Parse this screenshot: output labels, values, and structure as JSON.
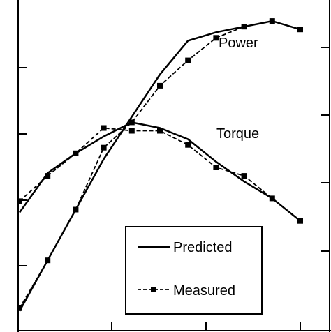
{
  "chart_data": {
    "type": "line",
    "title": "",
    "xlabel": "",
    "ylabel": "",
    "grid": false,
    "legend_placement": "bottom-right",
    "legend": [
      {
        "name": "Predicted",
        "style": "solid"
      },
      {
        "name": "Measured",
        "style": "dashed-square-markers"
      }
    ],
    "annotations": [
      "Power",
      "Torque"
    ],
    "x": [
      0,
      1,
      2,
      3,
      4,
      5,
      6,
      7,
      8,
      9,
      10
    ],
    "power": {
      "predicted": [
        0.4,
        2.2,
        4.0,
        5.8,
        7.3,
        8.8,
        10.0,
        10.3,
        10.5,
        10.7,
        10.4
      ],
      "measured": [
        0.5,
        2.2,
        4.0,
        6.2,
        7.1,
        8.4,
        9.3,
        10.1,
        10.5,
        10.7,
        10.4
      ]
    },
    "torque": {
      "predicted": [
        3.9,
        5.3,
        6.0,
        6.6,
        7.1,
        6.9,
        6.5,
        5.7,
        5.0,
        4.4,
        3.6
      ],
      "measured": [
        4.3,
        5.2,
        6.0,
        6.9,
        6.8,
        6.8,
        6.3,
        5.5,
        5.2,
        4.4,
        3.6
      ]
    },
    "xlim": [
      0,
      10
    ],
    "ylim": [
      0,
      11
    ]
  }
}
